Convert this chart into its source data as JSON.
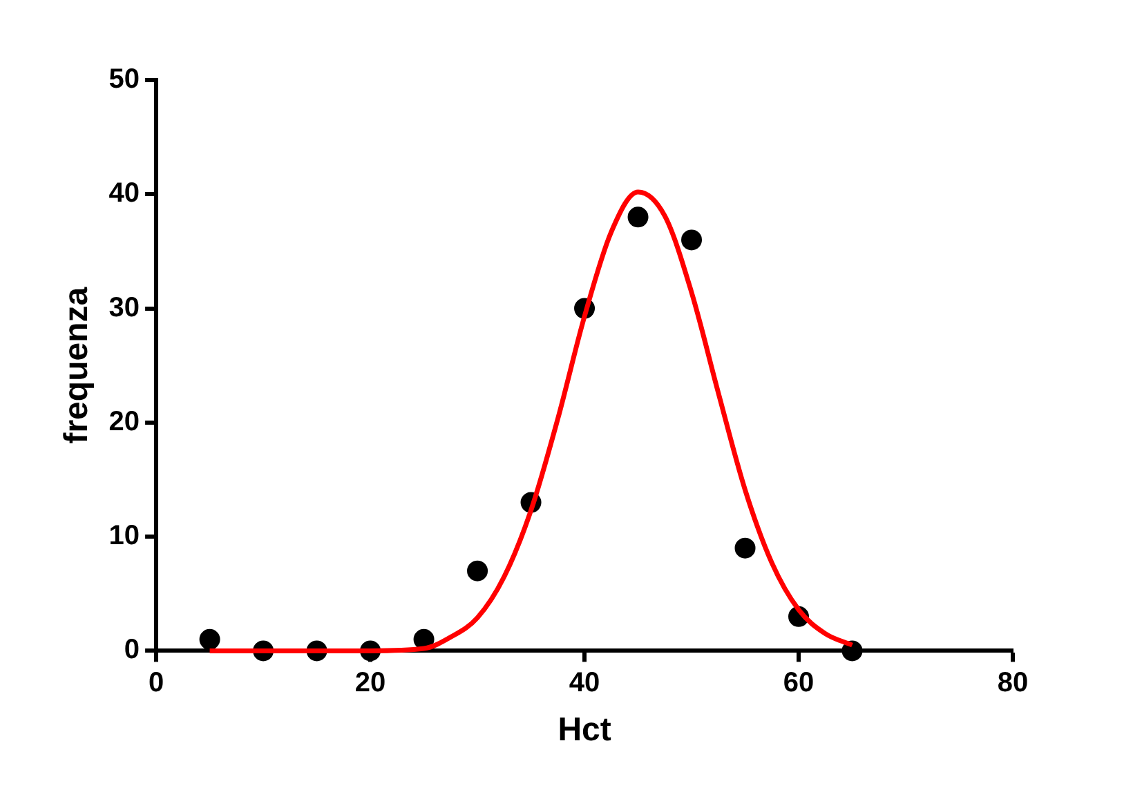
{
  "chart_data": {
    "type": "scatter",
    "xlabel": "Hct",
    "ylabel": "frequenza",
    "xlim": [
      0,
      80
    ],
    "xticks": [
      0,
      20,
      40,
      60,
      80
    ],
    "ylim": [
      0,
      50
    ],
    "yticks": [
      0,
      10,
      20,
      30,
      40,
      50
    ],
    "grid": false,
    "legend": false,
    "series": [
      {
        "color": "#000000",
        "marker": "circle",
        "x": [
          5,
          10,
          15,
          20,
          25,
          30,
          35,
          40,
          45,
          50,
          55,
          60,
          65
        ],
        "values": [
          1,
          0,
          0,
          0,
          1,
          7,
          13,
          30,
          38,
          36,
          9,
          3,
          0
        ]
      },
      {
        "type": "line",
        "color": "#ff0000",
        "marker": "none",
        "line_style": "solid",
        "x": [
          5,
          10,
          15,
          20,
          25,
          27.5,
          30,
          32.5,
          35,
          37.5,
          40,
          42.5,
          45,
          47.5,
          50,
          52.5,
          55,
          57.5,
          60,
          62.5,
          65
        ],
        "values": [
          0,
          0,
          0,
          0,
          0.2,
          1.2,
          2.9,
          6.5,
          12.3,
          20.3,
          29.3,
          36.7,
          40.2,
          38.1,
          31.4,
          22.6,
          14.1,
          7.7,
          3.6,
          1.5,
          0.5
        ]
      }
    ]
  }
}
